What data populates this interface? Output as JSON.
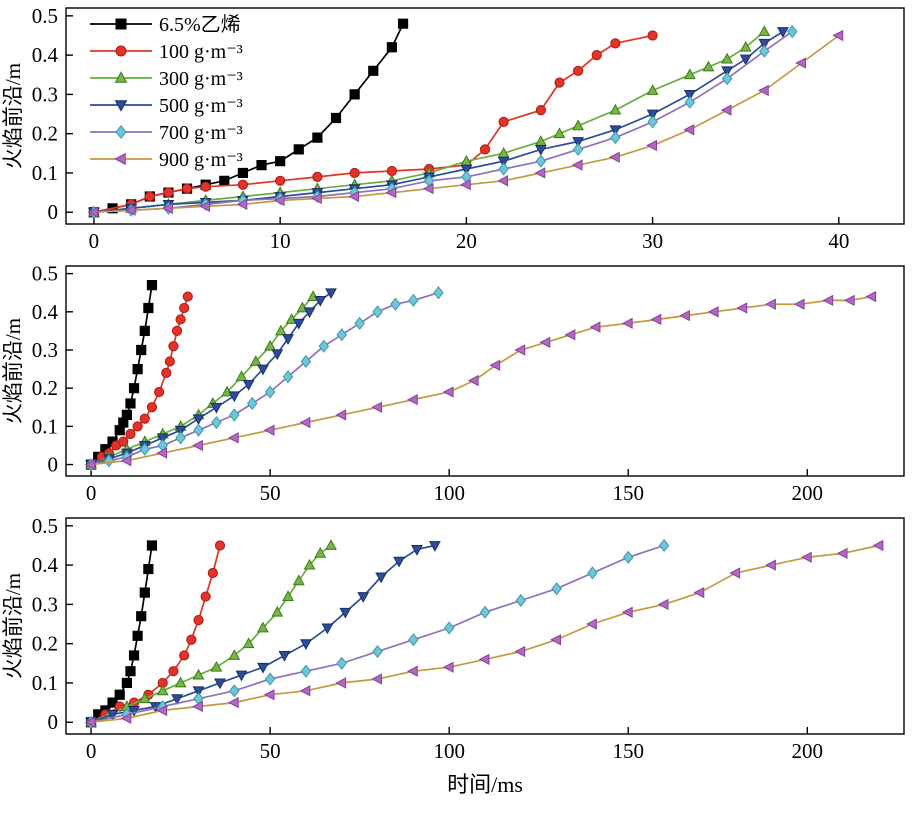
{
  "figure": {
    "background": "#ffffff",
    "axis_color": "#000000"
  },
  "legend": {
    "position": "top-left-of-first-panel",
    "entries": [
      {
        "label": "6.5%乙烯",
        "marker": "square",
        "marker_color": "#000000",
        "edge_color": "#000000",
        "line_color": "#000000"
      },
      {
        "label": "100 g·m⁻³",
        "marker": "circle",
        "marker_color": "#e53228",
        "edge_color": "#a81c14",
        "line_color": "#e53228"
      },
      {
        "label": "300 g·m⁻³",
        "marker": "triangle-up",
        "marker_color": "#77b544",
        "edge_color": "#3e7a1e",
        "line_color": "#6aad3d"
      },
      {
        "label": "500 g·m⁻³",
        "marker": "triangle-down",
        "marker_color": "#2c4d9b",
        "edge_color": "#1b2f66",
        "line_color": "#2c4d9b"
      },
      {
        "label": "700 g·m⁻³",
        "marker": "diamond",
        "marker_color": "#6fc6d6",
        "edge_color": "#3a98ad",
        "line_color": "#8f6fc0"
      },
      {
        "label": "900 g·m⁻³",
        "marker": "triangle-left",
        "marker_color": "#b168c0",
        "edge_color": "#8a3f9e",
        "line_color": "#c59a3f"
      }
    ]
  },
  "chart_data": [
    {
      "type": "line",
      "xlabel": "",
      "ylabel": "火焰前沿/m",
      "xlim": [
        -1.5,
        43.5
      ],
      "ylim": [
        -0.03,
        0.52
      ],
      "xticks": [
        0,
        10,
        20,
        30,
        40
      ],
      "yticks": [
        0,
        0.1,
        0.2,
        0.3,
        0.4,
        0.5
      ],
      "legend": true,
      "grid": false,
      "series": [
        {
          "x": [
            0,
            1,
            2,
            3,
            4,
            5,
            6,
            7,
            8,
            9,
            10,
            11,
            12,
            13,
            14,
            15,
            16,
            16.6
          ],
          "y": [
            0,
            0.01,
            0.02,
            0.04,
            0.05,
            0.06,
            0.07,
            0.08,
            0.1,
            0.12,
            0.13,
            0.16,
            0.19,
            0.24,
            0.3,
            0.36,
            0.42,
            0.48
          ]
        },
        {
          "x": [
            0,
            2,
            3,
            4,
            5,
            6,
            8,
            10,
            12,
            14,
            16,
            18,
            20,
            21,
            22,
            24,
            25,
            26,
            27,
            28,
            30
          ],
          "y": [
            0,
            0.02,
            0.04,
            0.05,
            0.06,
            0.065,
            0.07,
            0.08,
            0.09,
            0.1,
            0.105,
            0.11,
            0.12,
            0.16,
            0.23,
            0.26,
            0.33,
            0.36,
            0.4,
            0.43,
            0.45
          ]
        },
        {
          "x": [
            0,
            2,
            4,
            6,
            8,
            10,
            12,
            14,
            16,
            18,
            20,
            22,
            24,
            25,
            26,
            28,
            30,
            32,
            33,
            34,
            35,
            36
          ],
          "y": [
            0,
            0.01,
            0.02,
            0.03,
            0.04,
            0.05,
            0.06,
            0.07,
            0.08,
            0.1,
            0.13,
            0.15,
            0.18,
            0.2,
            0.22,
            0.26,
            0.31,
            0.35,
            0.37,
            0.39,
            0.42,
            0.46
          ]
        },
        {
          "x": [
            0,
            2,
            4,
            6,
            8,
            10,
            12,
            14,
            16,
            18,
            20,
            22,
            24,
            26,
            28,
            30,
            32,
            34,
            35,
            36,
            37
          ],
          "y": [
            0,
            0.01,
            0.02,
            0.025,
            0.03,
            0.04,
            0.05,
            0.06,
            0.07,
            0.09,
            0.11,
            0.13,
            0.16,
            0.18,
            0.21,
            0.25,
            0.3,
            0.36,
            0.39,
            0.43,
            0.46
          ]
        },
        {
          "x": [
            0,
            2,
            4,
            6,
            8,
            10,
            12,
            14,
            16,
            18,
            20,
            22,
            24,
            26,
            28,
            30,
            32,
            34,
            36,
            37.5
          ],
          "y": [
            0,
            0.005,
            0.01,
            0.02,
            0.03,
            0.035,
            0.04,
            0.05,
            0.06,
            0.08,
            0.09,
            0.11,
            0.13,
            0.16,
            0.19,
            0.23,
            0.28,
            0.34,
            0.41,
            0.46
          ]
        },
        {
          "x": [
            0,
            2,
            4,
            6,
            8,
            10,
            12,
            14,
            16,
            18,
            20,
            22,
            24,
            26,
            28,
            30,
            32,
            34,
            36,
            38,
            40
          ],
          "y": [
            0,
            0.005,
            0.01,
            0.015,
            0.02,
            0.03,
            0.035,
            0.04,
            0.05,
            0.06,
            0.07,
            0.08,
            0.1,
            0.12,
            0.14,
            0.17,
            0.21,
            0.26,
            0.31,
            0.38,
            0.45
          ]
        }
      ]
    },
    {
      "type": "line",
      "xlabel": "",
      "ylabel": "火焰前沿/m",
      "xlim": [
        -7,
        227
      ],
      "ylim": [
        -0.03,
        0.52
      ],
      "xticks": [
        0,
        50,
        100,
        150,
        200
      ],
      "yticks": [
        0,
        0.1,
        0.2,
        0.3,
        0.4,
        0.5
      ],
      "legend": false,
      "grid": false,
      "series": [
        {
          "x": [
            0,
            2,
            4,
            6,
            8,
            9,
            10,
            11,
            12,
            13,
            14,
            15,
            16,
            17
          ],
          "y": [
            0,
            0.02,
            0.04,
            0.06,
            0.09,
            0.11,
            0.13,
            0.16,
            0.2,
            0.25,
            0.3,
            0.35,
            0.41,
            0.47
          ]
        },
        {
          "x": [
            0,
            3,
            5,
            7,
            9,
            11,
            13,
            15,
            17,
            19,
            21,
            22,
            23,
            24,
            25,
            26,
            27
          ],
          "y": [
            0,
            0.02,
            0.03,
            0.05,
            0.06,
            0.08,
            0.1,
            0.12,
            0.15,
            0.19,
            0.24,
            0.27,
            0.31,
            0.35,
            0.38,
            0.41,
            0.44
          ]
        },
        {
          "x": [
            0,
            5,
            10,
            15,
            20,
            25,
            30,
            34,
            38,
            42,
            46,
            50,
            53,
            56,
            59,
            62
          ],
          "y": [
            0,
            0.02,
            0.04,
            0.06,
            0.08,
            0.1,
            0.13,
            0.16,
            0.19,
            0.23,
            0.27,
            0.31,
            0.35,
            0.38,
            0.41,
            0.44
          ]
        },
        {
          "x": [
            0,
            5,
            10,
            15,
            20,
            25,
            30,
            35,
            40,
            44,
            48,
            52,
            55,
            58,
            61,
            64,
            67
          ],
          "y": [
            0,
            0.015,
            0.03,
            0.05,
            0.07,
            0.09,
            0.12,
            0.15,
            0.18,
            0.21,
            0.25,
            0.29,
            0.33,
            0.37,
            0.4,
            0.43,
            0.45
          ]
        },
        {
          "x": [
            0,
            5,
            10,
            15,
            20,
            25,
            30,
            35,
            40,
            45,
            50,
            55,
            60,
            65,
            70,
            75,
            80,
            85,
            90,
            97
          ],
          "y": [
            0,
            0.01,
            0.02,
            0.04,
            0.05,
            0.07,
            0.09,
            0.11,
            0.13,
            0.16,
            0.19,
            0.23,
            0.27,
            0.31,
            0.34,
            0.37,
            0.4,
            0.42,
            0.43,
            0.45
          ]
        },
        {
          "x": [
            0,
            10,
            20,
            30,
            40,
            50,
            60,
            70,
            80,
            90,
            100,
            107,
            113,
            120,
            127,
            134,
            141,
            150,
            158,
            166,
            174,
            182,
            190,
            198,
            206,
            212,
            218
          ],
          "y": [
            0,
            0.01,
            0.03,
            0.05,
            0.07,
            0.09,
            0.11,
            0.13,
            0.15,
            0.17,
            0.19,
            0.22,
            0.26,
            0.3,
            0.32,
            0.34,
            0.36,
            0.37,
            0.38,
            0.39,
            0.4,
            0.41,
            0.42,
            0.42,
            0.43,
            0.43,
            0.44
          ]
        }
      ]
    },
    {
      "type": "line",
      "xlabel": "时间/ms",
      "ylabel": "火焰前沿/m",
      "xlim": [
        -7,
        227
      ],
      "ylim": [
        -0.03,
        0.52
      ],
      "xticks": [
        0,
        50,
        100,
        150,
        200
      ],
      "yticks": [
        0,
        0.1,
        0.2,
        0.3,
        0.4,
        0.5
      ],
      "legend": false,
      "grid": false,
      "series": [
        {
          "x": [
            0,
            2,
            4,
            6,
            8,
            10,
            11,
            12,
            13,
            14,
            15,
            16,
            17
          ],
          "y": [
            0,
            0.02,
            0.03,
            0.05,
            0.07,
            0.1,
            0.13,
            0.17,
            0.22,
            0.27,
            0.33,
            0.39,
            0.45
          ]
        },
        {
          "x": [
            0,
            4,
            8,
            12,
            16,
            20,
            23,
            26,
            28,
            30,
            32,
            34,
            36
          ],
          "y": [
            0,
            0.02,
            0.04,
            0.05,
            0.07,
            0.1,
            0.13,
            0.17,
            0.21,
            0.26,
            0.32,
            0.38,
            0.45
          ]
        },
        {
          "x": [
            0,
            5,
            10,
            15,
            20,
            25,
            30,
            35,
            40,
            44,
            48,
            52,
            55,
            58,
            61,
            64,
            67
          ],
          "y": [
            0,
            0.02,
            0.04,
            0.06,
            0.08,
            0.1,
            0.12,
            0.14,
            0.17,
            0.2,
            0.24,
            0.28,
            0.32,
            0.36,
            0.4,
            0.43,
            0.45
          ]
        },
        {
          "x": [
            0,
            6,
            12,
            18,
            24,
            30,
            36,
            42,
            48,
            54,
            60,
            66,
            71,
            76,
            81,
            86,
            91,
            96
          ],
          "y": [
            0,
            0.02,
            0.03,
            0.04,
            0.06,
            0.08,
            0.1,
            0.12,
            0.14,
            0.17,
            0.2,
            0.24,
            0.28,
            0.32,
            0.37,
            0.41,
            0.44,
            0.45
          ]
        },
        {
          "x": [
            0,
            10,
            20,
            30,
            40,
            50,
            60,
            70,
            80,
            90,
            100,
            110,
            120,
            130,
            140,
            150,
            160
          ],
          "y": [
            0,
            0.02,
            0.04,
            0.06,
            0.08,
            0.11,
            0.13,
            0.15,
            0.18,
            0.21,
            0.24,
            0.28,
            0.31,
            0.34,
            0.38,
            0.42,
            0.45
          ]
        },
        {
          "x": [
            0,
            10,
            20,
            30,
            40,
            50,
            60,
            70,
            80,
            90,
            100,
            110,
            120,
            130,
            140,
            150,
            160,
            170,
            180,
            190,
            200,
            210,
            220
          ],
          "y": [
            0,
            0.01,
            0.03,
            0.04,
            0.05,
            0.07,
            0.08,
            0.1,
            0.11,
            0.13,
            0.14,
            0.16,
            0.18,
            0.21,
            0.25,
            0.28,
            0.3,
            0.33,
            0.38,
            0.4,
            0.42,
            0.43,
            0.45
          ]
        }
      ]
    }
  ]
}
